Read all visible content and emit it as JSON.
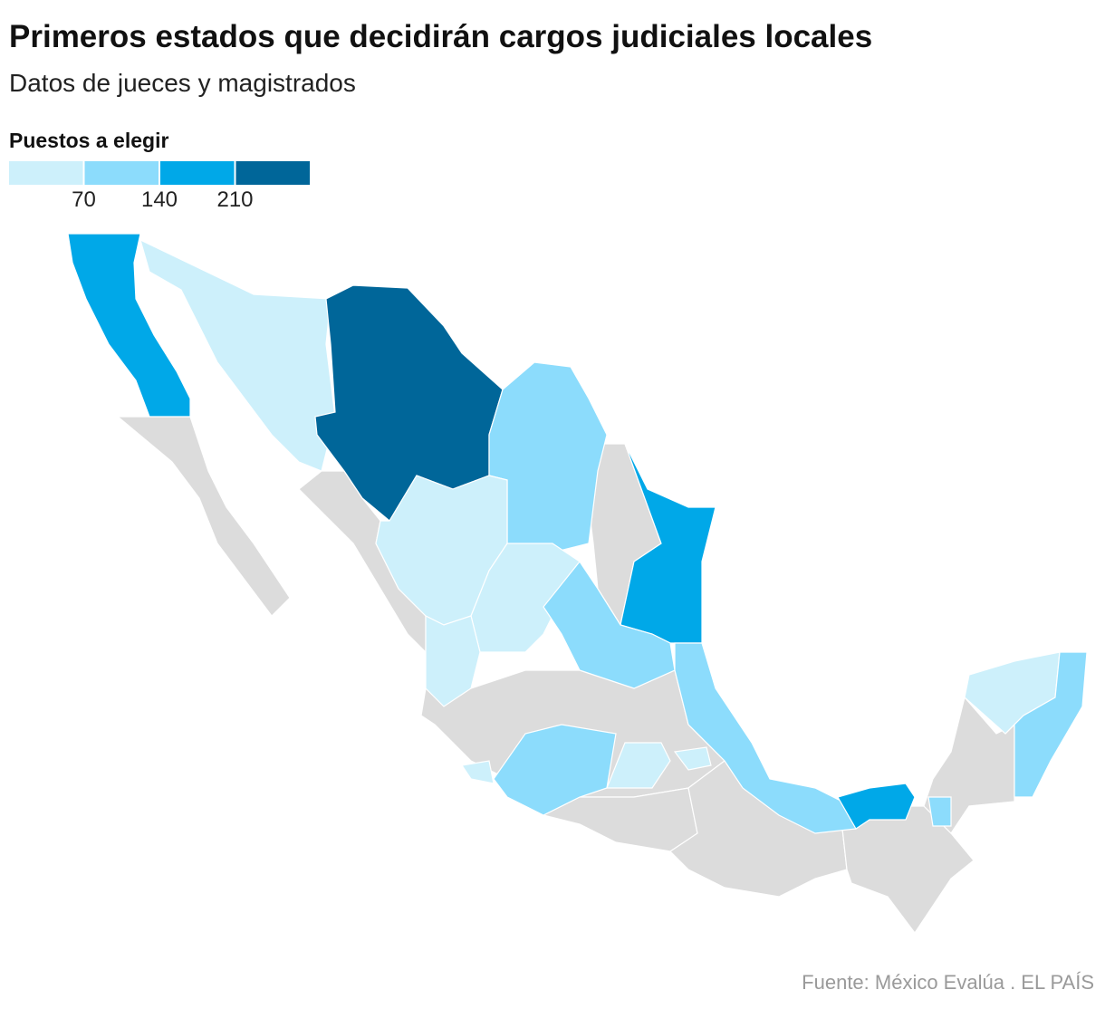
{
  "header": {
    "title": "Primeros estados que decidirán cargos judiciales locales",
    "subtitle": "Datos de jueces y magistrados"
  },
  "legend": {
    "title": "Puestos a elegir",
    "colors": [
      "#cdf0fb",
      "#8cdcfc",
      "#00a8e8",
      "#006699"
    ],
    "ticks": [
      70,
      140,
      210
    ]
  },
  "footer": {
    "source": "Fuente: México Evalúa . EL PAÍS"
  }
}
